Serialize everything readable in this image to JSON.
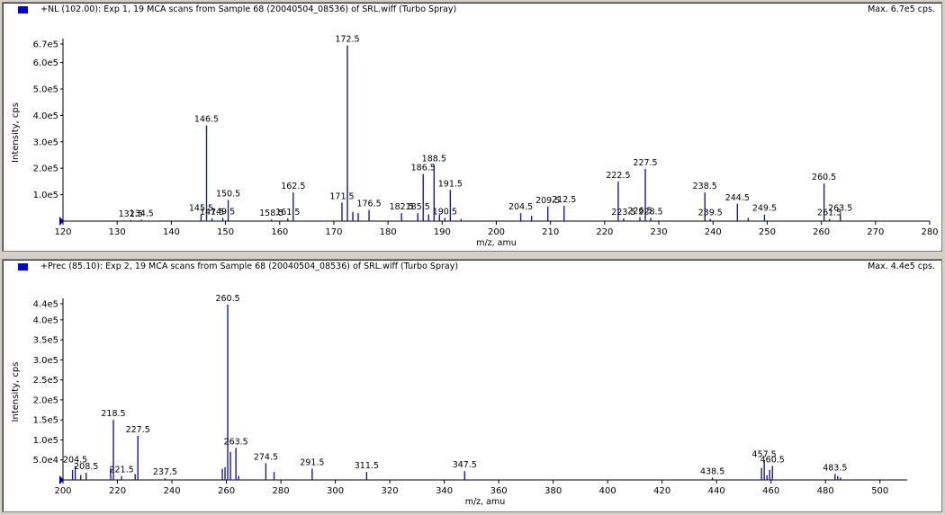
{
  "chart_data": [
    {
      "type": "bar",
      "title": "+NL (102.00): Exp 1, 19 MCA scans from Sample 68 (20040504_08536) of SRL.wiff (Turbo Spray)",
      "max_label": "Max. 6.7e5 cps.",
      "xlabel": "m/z, amu",
      "ylabel": "Intensity, cps",
      "xlim": [
        120,
        280
      ],
      "ylim": [
        0,
        670000
      ],
      "x_ticks": [
        120,
        130,
        140,
        150,
        160,
        170,
        180,
        190,
        200,
        210,
        220,
        230,
        240,
        250,
        260,
        270,
        280
      ],
      "y_ticks": [
        {
          "v": 100000,
          "t": "1.0e5"
        },
        {
          "v": 200000,
          "t": "2.0e5"
        },
        {
          "v": 300000,
          "t": "3.0e5"
        },
        {
          "v": 400000,
          "t": "4.0e5"
        },
        {
          "v": 500000,
          "t": "5.0e5"
        },
        {
          "v": 600000,
          "t": "6.0e5"
        },
        {
          "v": 670000,
          "t": "6.7e5"
        }
      ],
      "peaks": [
        {
          "x": 132.5,
          "y": 4000,
          "label": "132.5"
        },
        {
          "x": 134.5,
          "y": 5000,
          "label": "134.5"
        },
        {
          "x": 145.5,
          "y": 25000,
          "label": "145.5"
        },
        {
          "x": 146.5,
          "y": 362000,
          "label": "146.5"
        },
        {
          "x": 147.5,
          "y": 10000,
          "label": "147.5"
        },
        {
          "x": 149.5,
          "y": 12000,
          "label": "149.5"
        },
        {
          "x": 150.5,
          "y": 80000,
          "label": "150.5"
        },
        {
          "x": 158.5,
          "y": 6000,
          "label": "158.5"
        },
        {
          "x": 161.5,
          "y": 10000,
          "label": "161.5"
        },
        {
          "x": 162.5,
          "y": 108000,
          "label": "162.5"
        },
        {
          "x": 171.5,
          "y": 70000,
          "label": "171.5"
        },
        {
          "x": 172.5,
          "y": 665000,
          "label": "172.5"
        },
        {
          "x": 173.5,
          "y": 35000,
          "label": ""
        },
        {
          "x": 174.5,
          "y": 30000,
          "label": ""
        },
        {
          "x": 176.5,
          "y": 42000,
          "label": "176.5"
        },
        {
          "x": 182.5,
          "y": 30000,
          "label": "182.5"
        },
        {
          "x": 185.5,
          "y": 30000,
          "label": "185.5"
        },
        {
          "x": 186.5,
          "y": 178000,
          "label": "186.5"
        },
        {
          "x": 187.5,
          "y": 25000,
          "label": ""
        },
        {
          "x": 188.5,
          "y": 213000,
          "label": "188.5"
        },
        {
          "x": 189.5,
          "y": 25000,
          "label": ""
        },
        {
          "x": 190.5,
          "y": 12000,
          "label": "190.5"
        },
        {
          "x": 191.5,
          "y": 118000,
          "label": "191.5"
        },
        {
          "x": 193.5,
          "y": 8000,
          "label": ""
        },
        {
          "x": 204.5,
          "y": 30000,
          "label": "204.5"
        },
        {
          "x": 206.5,
          "y": 20000,
          "label": ""
        },
        {
          "x": 209.5,
          "y": 55000,
          "label": "209.5"
        },
        {
          "x": 212.5,
          "y": 58000,
          "label": "212.5"
        },
        {
          "x": 222.5,
          "y": 150000,
          "label": "222.5"
        },
        {
          "x": 223.5,
          "y": 10000,
          "label": "223.5"
        },
        {
          "x": 226.5,
          "y": 15000,
          "label": "226.5"
        },
        {
          "x": 227.5,
          "y": 198000,
          "label": "227.5"
        },
        {
          "x": 228.5,
          "y": 12000,
          "label": "228.5"
        },
        {
          "x": 238.5,
          "y": 108000,
          "label": "238.5"
        },
        {
          "x": 239.5,
          "y": 8000,
          "label": "239.5"
        },
        {
          "x": 244.5,
          "y": 65000,
          "label": "244.5"
        },
        {
          "x": 246.5,
          "y": 12000,
          "label": ""
        },
        {
          "x": 249.5,
          "y": 25000,
          "label": "249.5"
        },
        {
          "x": 260.5,
          "y": 142000,
          "label": "260.5"
        },
        {
          "x": 261.5,
          "y": 8000,
          "label": "261.5"
        },
        {
          "x": 263.5,
          "y": 25000,
          "label": "263.5"
        }
      ]
    },
    {
      "type": "bar",
      "title": "+Prec (85.10): Exp 2, 19 MCA scans from Sample 68 (20040504_08536) of SRL.wiff (Turbo Spray)",
      "max_label": "Max. 4.4e5 cps.",
      "xlabel": "m/z, amu",
      "ylabel": "Intensity, cps",
      "xlim": [
        200,
        510
      ],
      "ylim": [
        0,
        440000
      ],
      "x_ticks": [
        200,
        220,
        240,
        260,
        280,
        300,
        320,
        340,
        360,
        380,
        400,
        420,
        440,
        460,
        480,
        500
      ],
      "y_ticks": [
        {
          "v": 50000,
          "t": "5.0e4"
        },
        {
          "v": 100000,
          "t": "1.0e5"
        },
        {
          "v": 150000,
          "t": "1.5e5"
        },
        {
          "v": 200000,
          "t": "2.0e5"
        },
        {
          "v": 250000,
          "t": "2.5e5"
        },
        {
          "v": 300000,
          "t": "3.0e5"
        },
        {
          "v": 350000,
          "t": "3.5e5"
        },
        {
          "v": 400000,
          "t": "4.0e5"
        },
        {
          "v": 440000,
          "t": "4.4e5"
        }
      ],
      "peaks": [
        {
          "x": 203.5,
          "y": 25000,
          "label": ""
        },
        {
          "x": 204.5,
          "y": 35000,
          "label": "204.5"
        },
        {
          "x": 206.5,
          "y": 12000,
          "label": ""
        },
        {
          "x": 208.5,
          "y": 18000,
          "label": "208.5"
        },
        {
          "x": 217.5,
          "y": 30000,
          "label": ""
        },
        {
          "x": 218.5,
          "y": 150000,
          "label": "218.5"
        },
        {
          "x": 221.5,
          "y": 10000,
          "label": "221.5"
        },
        {
          "x": 226.5,
          "y": 15000,
          "label": ""
        },
        {
          "x": 227.5,
          "y": 110000,
          "label": "227.5"
        },
        {
          "x": 237.5,
          "y": 4000,
          "label": "237.5"
        },
        {
          "x": 258.5,
          "y": 28000,
          "label": ""
        },
        {
          "x": 259.5,
          "y": 32000,
          "label": ""
        },
        {
          "x": 260.5,
          "y": 438000,
          "label": "260.5"
        },
        {
          "x": 261.5,
          "y": 70000,
          "label": ""
        },
        {
          "x": 263.5,
          "y": 80000,
          "label": "263.5"
        },
        {
          "x": 264.5,
          "y": 10000,
          "label": ""
        },
        {
          "x": 274.5,
          "y": 42000,
          "label": "274.5"
        },
        {
          "x": 277.5,
          "y": 20000,
          "label": ""
        },
        {
          "x": 291.5,
          "y": 28000,
          "label": "291.5"
        },
        {
          "x": 311.5,
          "y": 20000,
          "label": "311.5"
        },
        {
          "x": 347.5,
          "y": 22000,
          "label": "347.5"
        },
        {
          "x": 438.5,
          "y": 6000,
          "label": "438.5"
        },
        {
          "x": 456.5,
          "y": 30000,
          "label": ""
        },
        {
          "x": 457.5,
          "y": 48000,
          "label": "457.5"
        },
        {
          "x": 458.5,
          "y": 12000,
          "label": ""
        },
        {
          "x": 459.5,
          "y": 25000,
          "label": ""
        },
        {
          "x": 460.5,
          "y": 35000,
          "label": "460.5"
        },
        {
          "x": 483.5,
          "y": 15000,
          "label": "483.5"
        },
        {
          "x": 484.5,
          "y": 10000,
          "label": ""
        },
        {
          "x": 485.5,
          "y": 6000,
          "label": ""
        }
      ]
    }
  ]
}
